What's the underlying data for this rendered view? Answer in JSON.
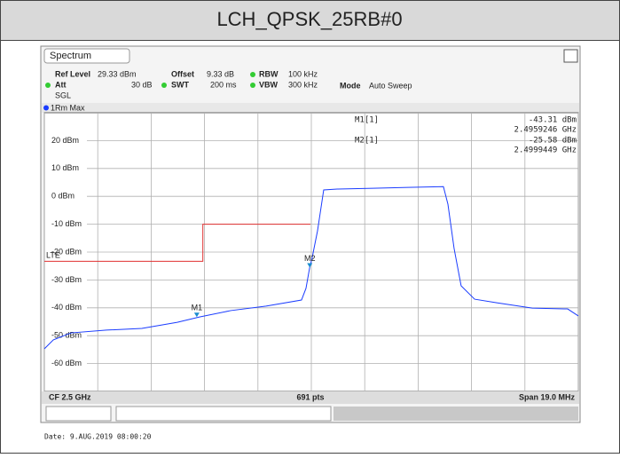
{
  "header": {
    "title": "LCH_QPSK_25RB#0"
  },
  "instrument": {
    "tab": "Spectrum",
    "ref_level_label": "Ref Level",
    "ref_level": "29.33 dBm",
    "offset_label": "Offset",
    "offset": "9.33 dB",
    "rbw_label": "RBW",
    "rbw": "100 kHz",
    "att_label": "Att",
    "att": "30 dB",
    "swt_label": "SWT",
    "swt": "200 ms",
    "vbw_label": "VBW",
    "vbw": "300 kHz",
    "mode_label": "Mode",
    "mode": "Auto Sweep",
    "sgl": "SGL",
    "trace": "1Rm Max",
    "center": "CF 2.5 GHz",
    "points": "691 pts",
    "span": "Span 19.0 MHz",
    "date": "Date: 9.AUG.2019  08:00:20"
  },
  "chart_data": {
    "type": "line",
    "xlim": [
      2.4905,
      2.5095
    ],
    "xticks": [
      2.4905,
      2.4924,
      2.4943,
      2.4962,
      2.4981,
      2.5,
      2.5019,
      2.5038,
      2.5057,
      2.5076,
      2.5095
    ],
    "ylim": [
      -70,
      30
    ],
    "yticks": [
      {
        "value": 20,
        "label": "20 dBm"
      },
      {
        "value": 10,
        "label": "10 dBm"
      },
      {
        "value": 0,
        "label": "0 dBm"
      },
      {
        "value": -10,
        "label": "-10 dBm"
      },
      {
        "value": -20,
        "label": "-20 dBm"
      },
      {
        "value": -30,
        "label": "-30 dBm"
      },
      {
        "value": -40,
        "label": "-40 dBm"
      },
      {
        "value": -50,
        "label": "-50 dBm"
      },
      {
        "value": -60,
        "label": "-60 dBm"
      }
    ],
    "grid": true,
    "series": [
      {
        "name": "1Rm Max",
        "color": "#1a3cff",
        "x": [
          2.4905,
          2.49082,
          2.49145,
          2.49271,
          2.49397,
          2.49523,
          2.49602,
          2.49713,
          2.49839,
          2.49965,
          2.49981,
          2.49994,
          2.50003,
          2.50022,
          2.50044,
          2.50092,
          2.50218,
          2.50344,
          2.5047,
          2.50486,
          2.50508,
          2.50533,
          2.50581,
          2.5066,
          2.50786,
          2.50912,
          2.5095
        ],
        "values": [
          -54.7,
          -51.5,
          -49,
          -48,
          -47.4,
          -45.2,
          -43.3,
          -41,
          -39.4,
          -37.2,
          -33,
          -25.6,
          -22,
          -12.4,
          2.3,
          2.6,
          2.9,
          3.2,
          3.5,
          -2.8,
          -18.7,
          -32.1,
          -36.9,
          -38.2,
          -40.1,
          -40.4,
          -42.9
        ]
      },
      {
        "name": "LTE",
        "color": "#e03030",
        "x": [
          2.4905,
          2.49614,
          2.49614,
          2.49997
        ],
        "values": [
          -23.3,
          -23.3,
          -10,
          -10
        ]
      }
    ],
    "markers": [
      {
        "name": "M1",
        "readout": "M1[1]",
        "x": 2.4959246,
        "value": -43.31,
        "value_label": "-43.31 dBm",
        "x_label": "2.4959246 GHz"
      },
      {
        "name": "M2",
        "readout": "M2[1]",
        "x": 2.4999449,
        "value": -25.58,
        "value_label": "-25.58 dBm",
        "x_label": "2.4999449 GHz"
      }
    ]
  }
}
